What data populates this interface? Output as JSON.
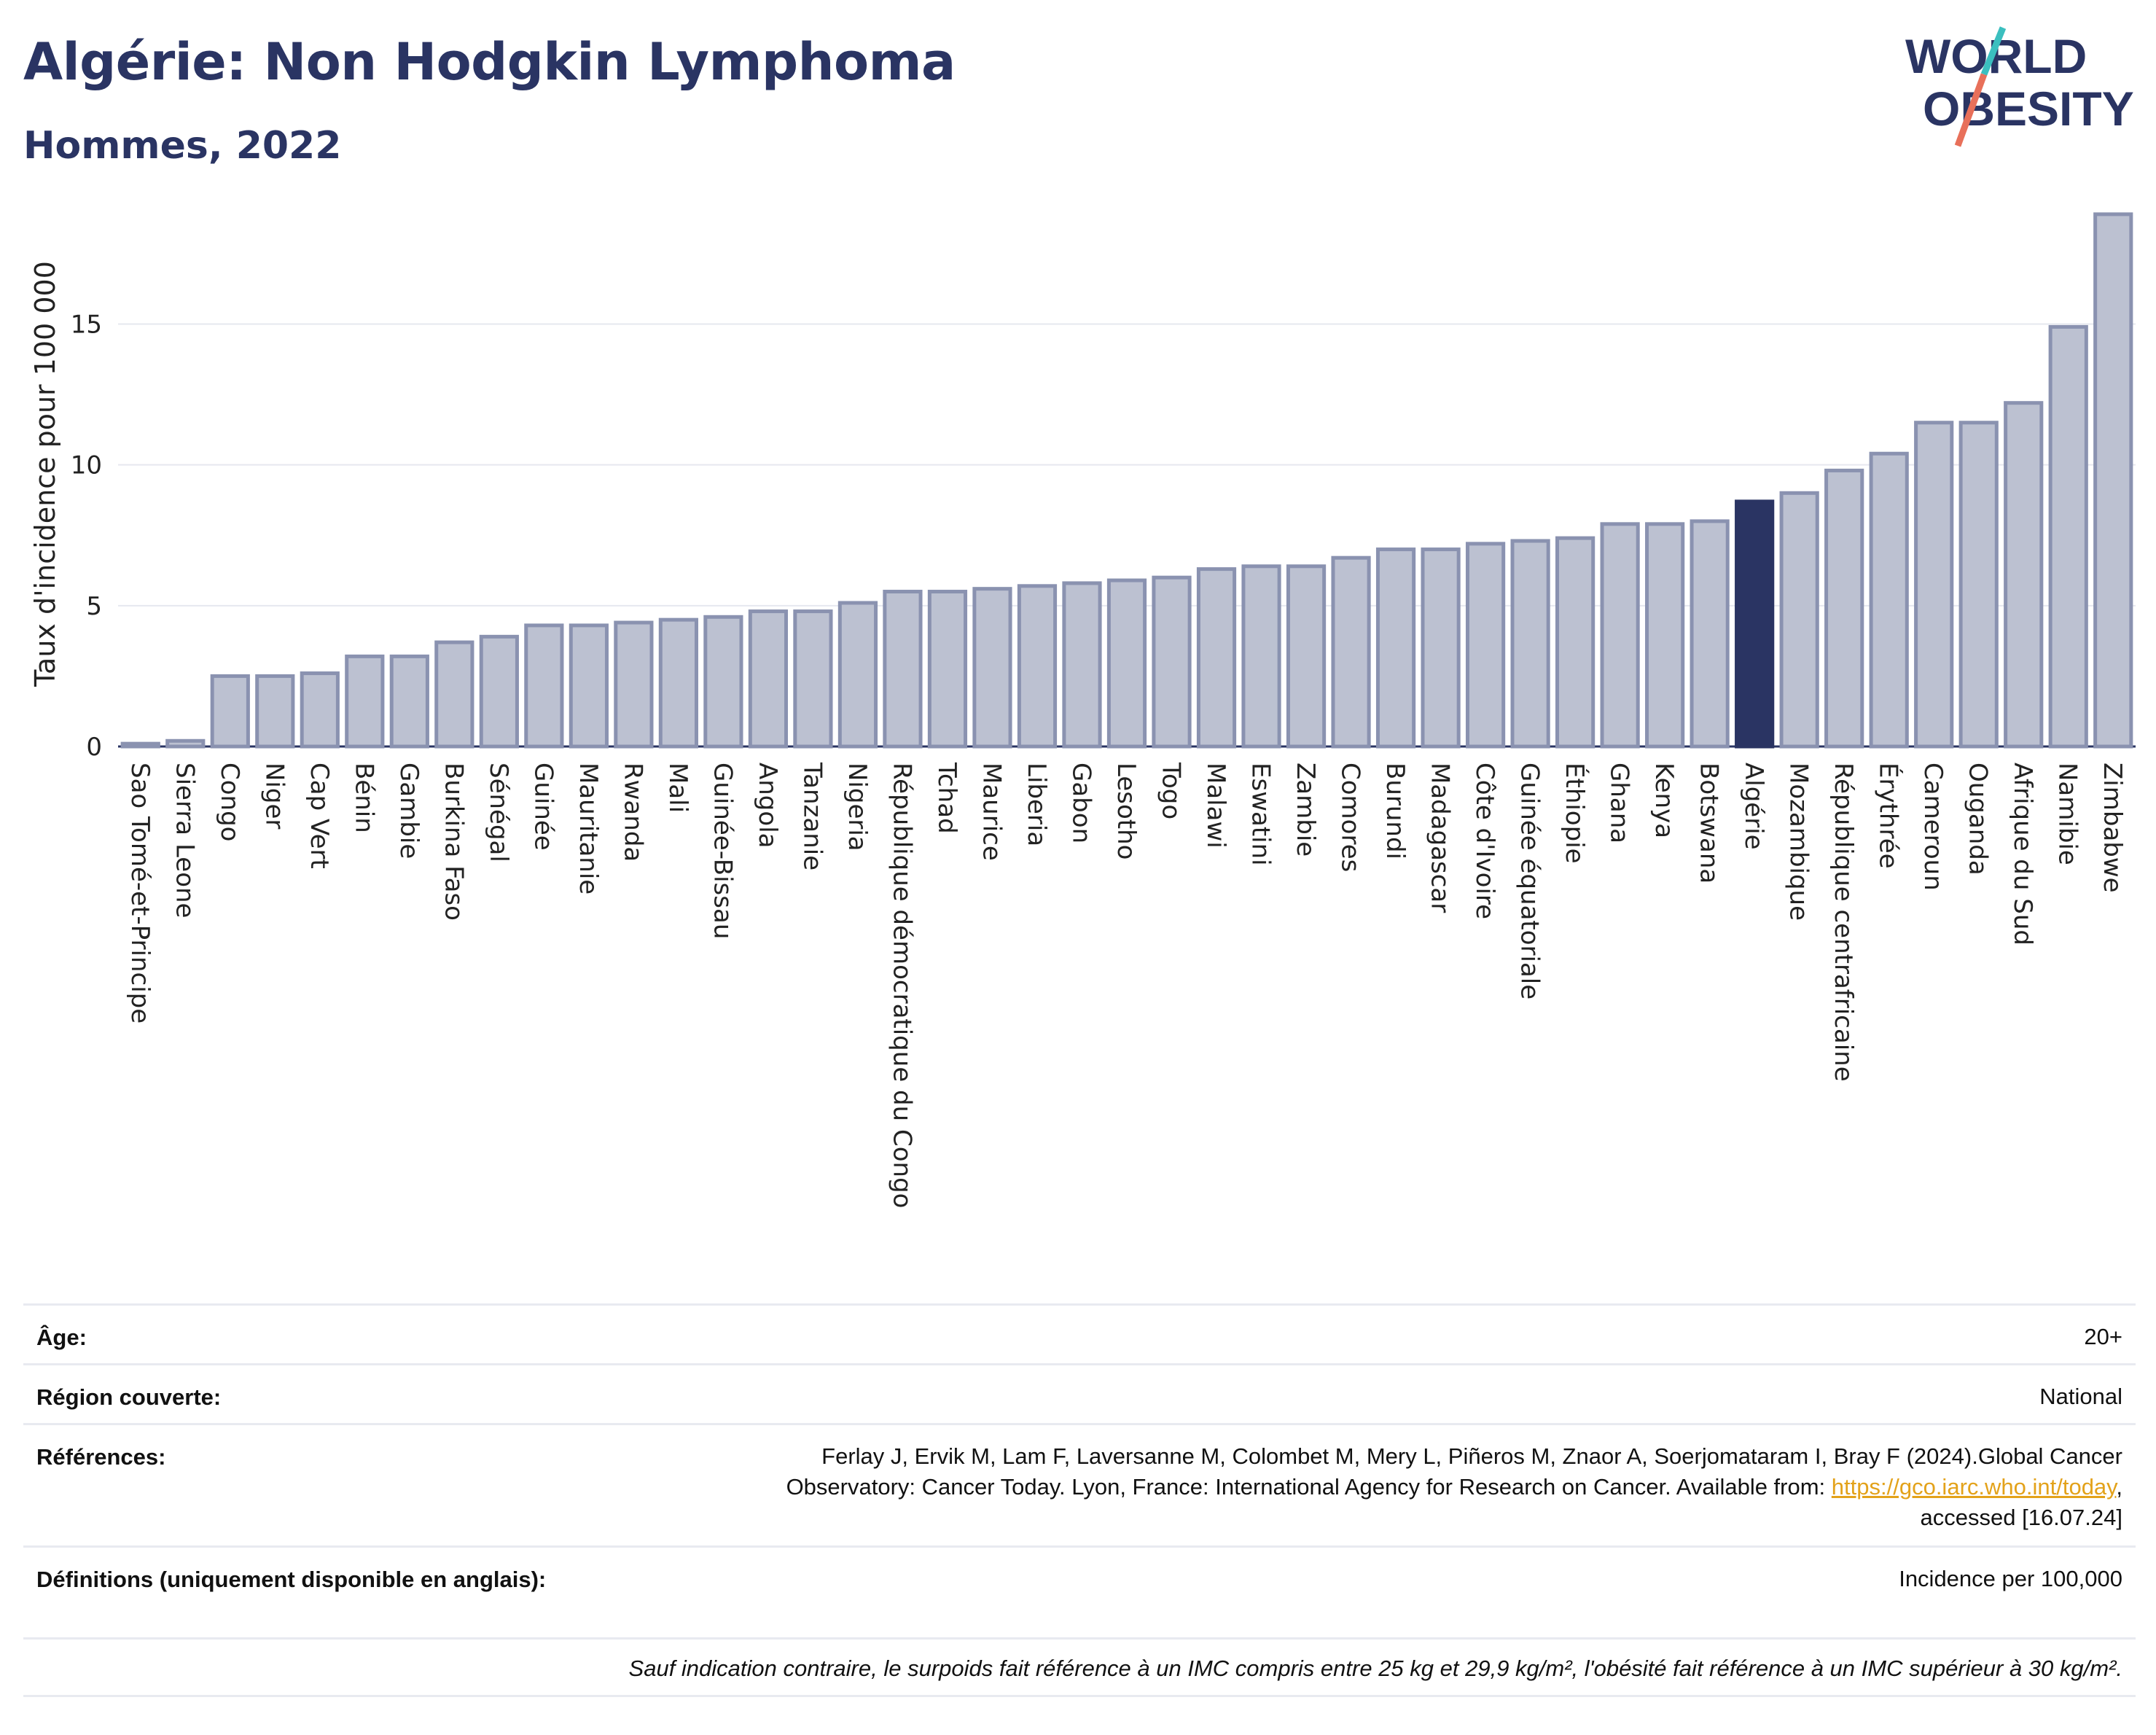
{
  "header": {
    "title": "Algérie: Non Hodgkin Lymphoma",
    "subtitle": "Hommes, 2022"
  },
  "logo": {
    "line1": "WORLD",
    "line2": "OBESITY",
    "slash_colors": [
      "#e8705a",
      "#3bbfbf"
    ]
  },
  "colors": {
    "bar": "#bcc1d1",
    "bar_edge": "#8a92b0",
    "highlight": "#2a3463",
    "title": "#2a3463"
  },
  "chart_data": {
    "type": "bar",
    "ylabel": "Taux d'incidence pour 100 000",
    "xlabel": "",
    "ylim": [
      0,
      19
    ],
    "yticks": [
      0,
      5,
      10,
      15
    ],
    "highlight": "Algérie",
    "grid": "horizontal",
    "categories": [
      "Sao Tomé-et-Principe",
      "Sierra Leone",
      "Congo",
      "Niger",
      "Cap Vert",
      "Bénin",
      "Gambie",
      "Burkina Faso",
      "Sénégal",
      "Guinée",
      "Mauritanie",
      "Rwanda",
      "Mali",
      "Guinée-Bissau",
      "Angola",
      "Tanzanie",
      "Nigeria",
      "République démocratique du Congo",
      "Tchad",
      "Maurice",
      "Liberia",
      "Gabon",
      "Lesotho",
      "Togo",
      "Malawi",
      "Eswatini",
      "Zambie",
      "Comores",
      "Burundi",
      "Madagascar",
      "Côte d'Ivoire",
      "Guinée équatoriale",
      "Éthiopie",
      "Ghana",
      "Kenya",
      "Botswana",
      "Algérie",
      "Mozambique",
      "République centrafricaine",
      "Érythrée",
      "Cameroun",
      "Ouganda",
      "Afrique du Sud",
      "Namibie",
      "Zimbabwe"
    ],
    "values": [
      0.1,
      0.2,
      2.5,
      2.5,
      2.6,
      3.2,
      3.2,
      3.7,
      3.9,
      4.3,
      4.3,
      4.4,
      4.5,
      4.6,
      4.8,
      4.8,
      5.1,
      5.5,
      5.5,
      5.6,
      5.7,
      5.8,
      5.9,
      6.0,
      6.3,
      6.4,
      6.4,
      6.7,
      7.0,
      7.0,
      7.2,
      7.3,
      7.4,
      7.9,
      7.9,
      8.0,
      8.7,
      9.0,
      9.8,
      10.4,
      11.5,
      11.5,
      12.2,
      14.9,
      18.9
    ]
  },
  "info": {
    "age_label": "Âge:",
    "age_value": "20+",
    "region_label": "Région couverte:",
    "region_value": "National",
    "ref_label": "Références:",
    "ref_line1": "Ferlay J, Ervik M, Lam F, Laversanne M, Colombet M, Mery L, Piñeros M, Znaor A, Soerjomataram I, Bray F (2024).Global Cancer",
    "ref_line2_text": "Observatory: Cancer Today. Lyon, France: International Agency for Research on Cancer. Available from: ",
    "ref_link": "https://gco.iarc.who.int/today",
    "ref_line2_end": ",",
    "ref_line3": "accessed [16.07.24]",
    "def_label": "Définitions (uniquement disponible en anglais):",
    "def_value": "Incidence per 100,000",
    "note": "Sauf indication contraire, le surpoids fait référence à un IMC compris entre 25 kg et 29,9 kg/m², l'obésité fait référence à un IMC supérieur à 30 kg/m²."
  }
}
